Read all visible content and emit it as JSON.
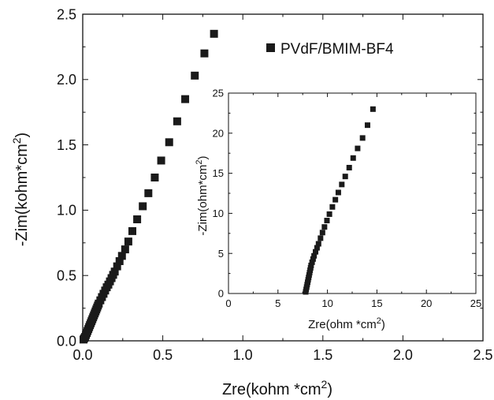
{
  "chart_data": [
    {
      "type": "scatter",
      "xlabel": "Zre(kohm *cm",
      "xlabel_sup": "2",
      "xlabel_end": ")",
      "ylabel": "-Zim(kohm*cm",
      "ylabel_sup": "2",
      "ylabel_end": ")",
      "xlim": [
        0,
        2.5
      ],
      "ylim": [
        0,
        2.5
      ],
      "xticks": [
        "0.0",
        "0.5",
        "1.0",
        "1.5",
        "2.0",
        "2.5"
      ],
      "yticks": [
        "0.0",
        "0.5",
        "1.0",
        "1.5",
        "2.0",
        "2.5"
      ],
      "grid": false,
      "legend_position": "top-right",
      "series": [
        {
          "name": "PVdF/BMIM-BF4",
          "color": "#1a1a1a",
          "marker": "square",
          "x": [
            0.005,
            0.01,
            0.015,
            0.02,
            0.025,
            0.03,
            0.035,
            0.04,
            0.045,
            0.05,
            0.055,
            0.06,
            0.065,
            0.07,
            0.075,
            0.08,
            0.085,
            0.09,
            0.095,
            0.1,
            0.11,
            0.12,
            0.13,
            0.14,
            0.15,
            0.16,
            0.17,
            0.18,
            0.19,
            0.2,
            0.215,
            0.23,
            0.245,
            0.265,
            0.285,
            0.31,
            0.34,
            0.375,
            0.41,
            0.45,
            0.49,
            0.54,
            0.59,
            0.64,
            0.7,
            0.76,
            0.82
          ],
          "y": [
            0.01,
            0.02,
            0.03,
            0.045,
            0.06,
            0.075,
            0.09,
            0.105,
            0.12,
            0.135,
            0.15,
            0.165,
            0.18,
            0.195,
            0.21,
            0.225,
            0.24,
            0.255,
            0.27,
            0.285,
            0.31,
            0.335,
            0.36,
            0.385,
            0.41,
            0.43,
            0.455,
            0.48,
            0.505,
            0.53,
            0.57,
            0.61,
            0.65,
            0.7,
            0.76,
            0.84,
            0.93,
            1.03,
            1.13,
            1.25,
            1.38,
            1.52,
            1.68,
            1.85,
            2.03,
            2.2,
            2.35
          ]
        }
      ]
    },
    {
      "type": "scatter",
      "inset": true,
      "xlabel": "Zre(ohm *cm",
      "xlabel_sup": "2",
      "xlabel_end": ")",
      "ylabel": "-Zim(ohm*cm",
      "ylabel_sup": "2",
      "ylabel_end": ")",
      "xlim": [
        0,
        25
      ],
      "ylim": [
        0,
        25
      ],
      "xticks": [
        "0",
        "5",
        "10",
        "15",
        "20",
        "25"
      ],
      "yticks": [
        "0",
        "5",
        "10",
        "15",
        "20",
        "25"
      ],
      "grid": false,
      "series": [
        {
          "color": "#1a1a1a",
          "marker": "square",
          "x": [
            7.8,
            7.85,
            7.9,
            7.95,
            8.0,
            8.05,
            8.1,
            8.15,
            8.2,
            8.25,
            8.3,
            8.35,
            8.45,
            8.55,
            8.65,
            8.8,
            8.95,
            9.1,
            9.3,
            9.5,
            9.7,
            9.95,
            10.2,
            10.5,
            10.8,
            11.1,
            11.45,
            11.8,
            12.2,
            12.6,
            13.05,
            13.55,
            14.05,
            14.6
          ],
          "y": [
            0.2,
            0.5,
            0.8,
            1.1,
            1.4,
            1.7,
            2.0,
            2.3,
            2.6,
            2.9,
            3.2,
            3.5,
            3.9,
            4.3,
            4.7,
            5.2,
            5.7,
            6.2,
            6.9,
            7.6,
            8.3,
            9.1,
            9.9,
            10.8,
            11.7,
            12.6,
            13.6,
            14.6,
            15.7,
            16.9,
            18.1,
            19.4,
            21.0,
            23.0
          ]
        }
      ]
    }
  ]
}
